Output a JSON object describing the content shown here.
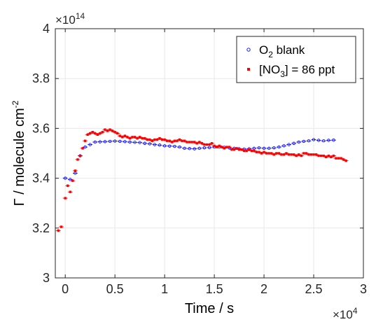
{
  "chart_data": {
    "type": "scatter",
    "xlabel": "Time / s",
    "ylabel": {
      "prefix": "Γ / molecule cm",
      "superscript": "-2"
    },
    "x_exponent": {
      "base": "×10",
      "power": "4"
    },
    "y_exponent": {
      "base": "×10",
      "power": "14"
    },
    "xlim": [
      -1000,
      30000
    ],
    "ylim": [
      3.0,
      4.0
    ],
    "x_ticks": [
      0,
      5000,
      10000,
      15000,
      20000,
      25000,
      30000
    ],
    "x_tick_labels": [
      "0",
      "0.5",
      "1",
      "1.5",
      "2",
      "2.5",
      "3"
    ],
    "y_ticks": [
      3.0,
      3.2,
      3.4,
      3.6,
      3.8,
      4.0
    ],
    "y_tick_labels": [
      "3",
      "3.2",
      "3.4",
      "3.6",
      "3.8",
      "4"
    ],
    "grid": true,
    "legend_position": "top-right",
    "series": [
      {
        "name": "O2 blank",
        "legend_parts": [
          "O",
          "2",
          " blank"
        ],
        "color": "#0000ff",
        "marker": "open-circle",
        "x": [
          0,
          500,
          1000,
          1500,
          2000,
          2500,
          3000,
          3500,
          4000,
          4500,
          5000,
          5500,
          6000,
          6500,
          7000,
          7500,
          8000,
          8500,
          9000,
          9500,
          10000,
          10500,
          11000,
          11500,
          12000,
          12500,
          13000,
          13500,
          14000,
          14500,
          15000,
          15500,
          16000,
          16500,
          17000,
          17500,
          18000,
          18500,
          19000,
          19500,
          20000,
          20500,
          21000,
          21500,
          22000,
          22500,
          23000,
          23500,
          24000,
          24500,
          25000,
          25500,
          26000,
          26500,
          27000
        ],
        "y": [
          3.4,
          3.395,
          3.42,
          3.49,
          3.525,
          3.535,
          3.545,
          3.546,
          3.547,
          3.548,
          3.549,
          3.548,
          3.547,
          3.545,
          3.544,
          3.543,
          3.54,
          3.538,
          3.535,
          3.533,
          3.53,
          3.529,
          3.528,
          3.525,
          3.52,
          3.519,
          3.518,
          3.52,
          3.522,
          3.523,
          3.525,
          3.525,
          3.524,
          3.522,
          3.52,
          3.518,
          3.517,
          3.518,
          3.52,
          3.522,
          3.52,
          3.52,
          3.522,
          3.525,
          3.53,
          3.535,
          3.54,
          3.545,
          3.548,
          3.55,
          3.555,
          3.552,
          3.55,
          3.552,
          3.553
        ]
      },
      {
        "name": "[NO3] = 86 ppt",
        "legend_parts": [
          "[NO",
          "3",
          "] = 86 ppt"
        ],
        "color": "#ff0000",
        "marker": "filled-square",
        "x": [
          -700,
          -400,
          0,
          250,
          500,
          750,
          1000,
          1250,
          1500,
          1750,
          2000,
          2250,
          2500,
          2750,
          3000,
          3250,
          3500,
          3750,
          4000,
          4250,
          4500,
          4750,
          5000,
          5250,
          5500,
          5750,
          6000,
          6250,
          6500,
          6750,
          7000,
          7250,
          7500,
          7750,
          8000,
          8250,
          8500,
          8750,
          9000,
          9250,
          9500,
          9750,
          10000,
          10250,
          10500,
          10750,
          11000,
          11250,
          11500,
          11750,
          12000,
          12250,
          12500,
          12750,
          13000,
          13250,
          13500,
          13750,
          14000,
          14250,
          14500,
          14750,
          15000,
          15250,
          15500,
          15750,
          16000,
          16250,
          16500,
          16750,
          17000,
          17250,
          17500,
          17750,
          18000,
          18250,
          18500,
          18750,
          19000,
          19250,
          19500,
          19750,
          20000,
          20250,
          20500,
          20750,
          21000,
          21250,
          21500,
          21750,
          22000,
          22250,
          22500,
          22750,
          23000,
          23250,
          23500,
          23750,
          24000,
          24250,
          24500,
          24750,
          25000,
          25250,
          25500,
          25750,
          26000,
          26250,
          26500,
          26750,
          27000,
          27250,
          27500,
          27750,
          28000,
          28250
        ],
        "y": [
          3.19,
          3.205,
          3.32,
          3.37,
          3.345,
          3.39,
          3.43,
          3.475,
          3.49,
          3.52,
          3.55,
          3.575,
          3.58,
          3.585,
          3.58,
          3.575,
          3.58,
          3.585,
          3.595,
          3.59,
          3.595,
          3.59,
          3.585,
          3.58,
          3.57,
          3.565,
          3.57,
          3.565,
          3.56,
          3.565,
          3.565,
          3.56,
          3.565,
          3.56,
          3.56,
          3.555,
          3.555,
          3.55,
          3.555,
          3.555,
          3.56,
          3.555,
          3.555,
          3.55,
          3.55,
          3.545,
          3.55,
          3.55,
          3.555,
          3.55,
          3.55,
          3.545,
          3.545,
          3.545,
          3.545,
          3.54,
          3.545,
          3.54,
          3.535,
          3.535,
          3.535,
          3.54,
          3.53,
          3.525,
          3.53,
          3.525,
          3.52,
          3.525,
          3.525,
          3.515,
          3.515,
          3.52,
          3.515,
          3.515,
          3.51,
          3.51,
          3.515,
          3.51,
          3.51,
          3.505,
          3.505,
          3.5,
          3.505,
          3.5,
          3.5,
          3.5,
          3.495,
          3.5,
          3.5,
          3.495,
          3.495,
          3.5,
          3.495,
          3.495,
          3.495,
          3.49,
          3.495,
          3.49,
          3.5,
          3.5,
          3.495,
          3.495,
          3.495,
          3.495,
          3.49,
          3.49,
          3.49,
          3.485,
          3.49,
          3.485,
          3.49,
          3.48,
          3.48,
          3.48,
          3.475,
          3.47
        ]
      }
    ]
  }
}
